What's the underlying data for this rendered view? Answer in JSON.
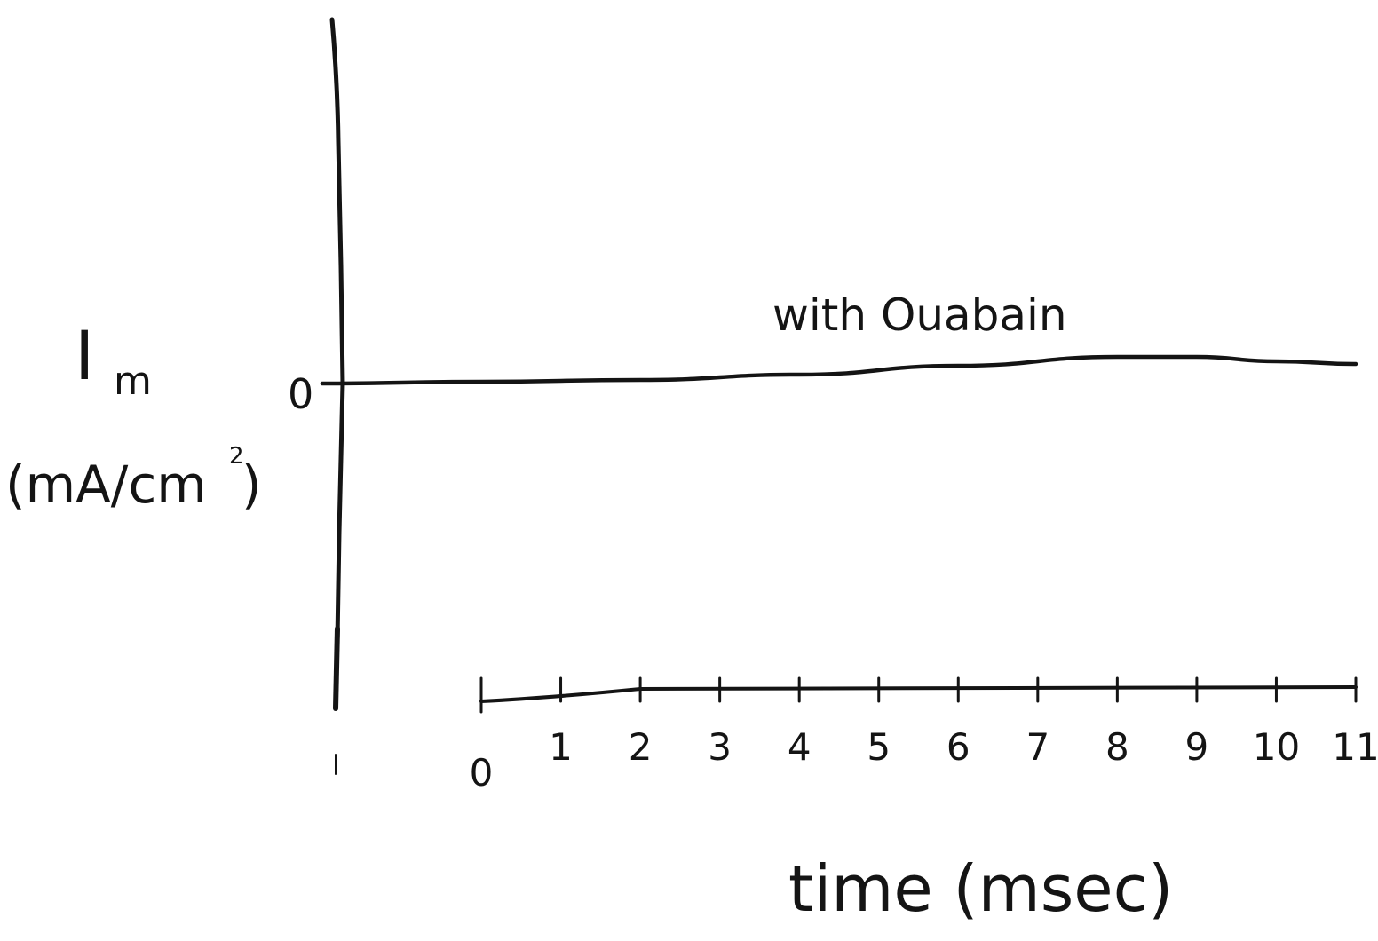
{
  "chart_data": {
    "type": "line",
    "title": "",
    "xlabel": "time (msec)",
    "ylabel": {
      "symbol": "I",
      "subscript": "m",
      "unit": "(mA/cm",
      "unit_power": "2",
      "unit_close": ")"
    },
    "y_zero_label": "0",
    "xlim": [
      0,
      11
    ],
    "x_ticks": [
      0,
      1,
      2,
      3,
      4,
      5,
      6,
      7,
      8,
      9,
      10,
      11
    ],
    "x_tick_labels": [
      "0",
      "1",
      "2",
      "3",
      "4",
      "5",
      "6",
      "7",
      "8",
      "9",
      "10",
      "11"
    ],
    "grid": false,
    "legend": "none",
    "series": [
      {
        "name": "with Ouabain",
        "x": [
          -2.0,
          0.0,
          2.0,
          4.0,
          6.0,
          8.0,
          9.0,
          10.0,
          11.0
        ],
        "y": [
          0,
          0.02,
          0.04,
          0.1,
          0.2,
          0.3,
          0.3,
          0.25,
          0.22
        ]
      }
    ],
    "colors": {
      "ink": "#141414"
    }
  }
}
